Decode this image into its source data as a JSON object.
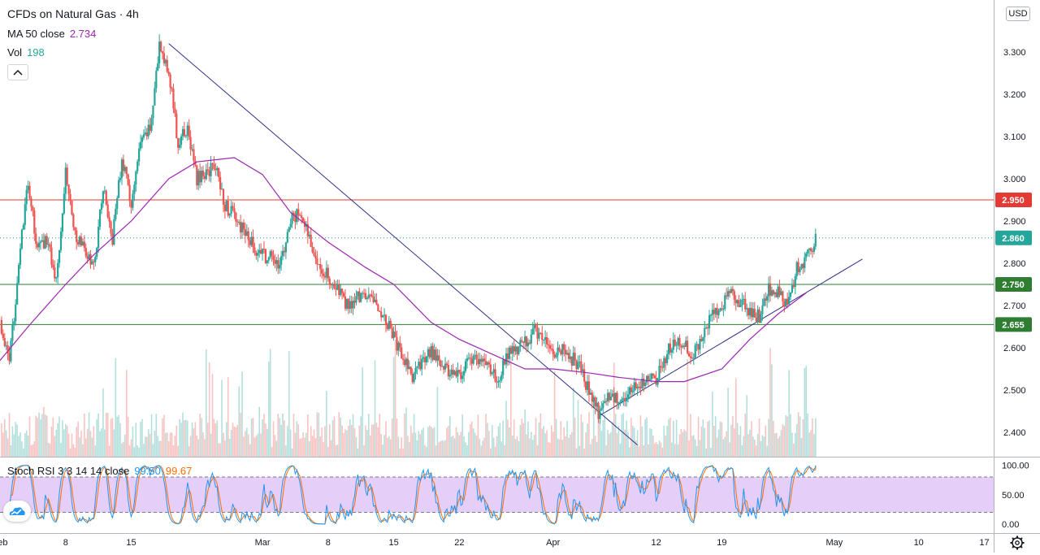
{
  "header": {
    "title": "CFDs on Natural Gas · 4h",
    "ma_key": "MA 50 close",
    "ma_value": "2.734",
    "vol_key": "Vol",
    "vol_value": "198",
    "currency": "USD",
    "collapse_icon": "chevron-up-icon"
  },
  "stoch": {
    "key": "Stoch RSI 3 3 14 14 close",
    "k_value": "99.50",
    "d_value": "99.67",
    "ticks": [
      0,
      50,
      100
    ],
    "tick_labels": [
      "0.00",
      "50.00",
      "100.00"
    ],
    "band": [
      20,
      80
    ]
  },
  "colors": {
    "up": "#26a69a",
    "down": "#ef5350",
    "ma": "#9c27b0",
    "trend": "#2a2e89",
    "resistance": "#e53935",
    "support": "#2e7d32",
    "stoch_k": "#2196f3",
    "stoch_d": "#ff6d00",
    "stoch_band": "#e1c6f7"
  },
  "chart_data": {
    "type": "candlestick",
    "title": "CFDs on Natural Gas · 4h",
    "ylim": [
      2.36,
      3.33
    ],
    "yticks": [
      3.3,
      3.2,
      3.1,
      3.0,
      2.9,
      2.8,
      2.7,
      2.6,
      2.5,
      2.4
    ],
    "ytick_labels": [
      "3.300",
      "3.200",
      "3.100",
      "3.000",
      "2.900",
      "2.800",
      "2.700",
      "2.600",
      "2.500",
      "2.400"
    ],
    "x_start": "2021-02-01",
    "x_end": "2021-05-18",
    "xticks": [
      "2021-02-01",
      "2021-02-08",
      "2021-02-15",
      "2021-03-01",
      "2021-03-08",
      "2021-03-15",
      "2021-03-22",
      "2021-04-01",
      "2021-04-12",
      "2021-04-19",
      "2021-05-01",
      "2021-05-10",
      "2021-05-17"
    ],
    "xtick_labels": [
      "Feb",
      "8",
      "15",
      "Mar",
      "8",
      "15",
      "22",
      "Apr",
      "12",
      "19",
      "May",
      "10",
      "17"
    ],
    "anchors": [
      [
        "2021-02-01",
        2.66
      ],
      [
        "2021-02-02",
        2.56
      ],
      [
        "2021-02-03",
        2.8
      ],
      [
        "2021-02-04",
        2.99
      ],
      [
        "2021-02-05",
        2.83
      ],
      [
        "2021-02-06",
        2.86
      ],
      [
        "2021-02-07",
        2.76
      ],
      [
        "2021-02-08",
        3.02
      ],
      [
        "2021-02-09",
        2.87
      ],
      [
        "2021-02-10",
        2.83
      ],
      [
        "2021-02-11",
        2.79
      ],
      [
        "2021-02-12",
        2.98
      ],
      [
        "2021-02-13",
        2.86
      ],
      [
        "2021-02-14",
        3.05
      ],
      [
        "2021-02-15",
        2.94
      ],
      [
        "2021-02-16",
        3.08
      ],
      [
        "2021-02-17",
        3.12
      ],
      [
        "2021-02-18",
        3.31
      ],
      [
        "2021-02-19",
        3.26
      ],
      [
        "2021-02-20",
        3.08
      ],
      [
        "2021-02-21",
        3.12
      ],
      [
        "2021-02-22",
        3.0
      ],
      [
        "2021-02-24",
        3.03
      ],
      [
        "2021-02-25",
        2.94
      ],
      [
        "2021-02-26",
        2.91
      ],
      [
        "2021-02-28",
        2.84
      ],
      [
        "2021-03-01",
        2.82
      ],
      [
        "2021-03-03",
        2.8
      ],
      [
        "2021-03-04",
        2.9
      ],
      [
        "2021-03-05",
        2.92
      ],
      [
        "2021-03-06",
        2.86
      ],
      [
        "2021-03-07",
        2.8
      ],
      [
        "2021-03-08",
        2.77
      ],
      [
        "2021-03-10",
        2.7
      ],
      [
        "2021-03-12",
        2.73
      ],
      [
        "2021-03-13",
        2.7
      ],
      [
        "2021-03-14",
        2.68
      ],
      [
        "2021-03-16",
        2.57
      ],
      [
        "2021-03-17",
        2.53
      ],
      [
        "2021-03-19",
        2.59
      ],
      [
        "2021-03-20",
        2.56
      ],
      [
        "2021-03-22",
        2.53
      ],
      [
        "2021-03-23",
        2.58
      ],
      [
        "2021-03-25",
        2.56
      ],
      [
        "2021-03-26",
        2.52
      ],
      [
        "2021-03-27",
        2.58
      ],
      [
        "2021-03-29",
        2.61
      ],
      [
        "2021-03-30",
        2.64
      ],
      [
        "2021-03-31",
        2.62
      ],
      [
        "2021-04-01",
        2.58
      ],
      [
        "2021-04-02",
        2.6
      ],
      [
        "2021-04-04",
        2.55
      ],
      [
        "2021-04-05",
        2.48
      ],
      [
        "2021-04-06",
        2.44
      ],
      [
        "2021-04-07",
        2.49
      ],
      [
        "2021-04-08",
        2.47
      ],
      [
        "2021-04-10",
        2.51
      ],
      [
        "2021-04-11",
        2.53
      ],
      [
        "2021-04-12",
        2.52
      ],
      [
        "2021-04-13",
        2.58
      ],
      [
        "2021-04-14",
        2.62
      ],
      [
        "2021-04-15",
        2.61
      ],
      [
        "2021-04-16",
        2.58
      ],
      [
        "2021-04-17",
        2.64
      ],
      [
        "2021-04-18",
        2.68
      ],
      [
        "2021-04-20",
        2.73
      ],
      [
        "2021-04-21",
        2.71
      ],
      [
        "2021-04-22",
        2.69
      ],
      [
        "2021-04-23",
        2.67
      ],
      [
        "2021-04-24",
        2.74
      ],
      [
        "2021-04-25",
        2.73
      ],
      [
        "2021-04-26",
        2.7
      ],
      [
        "2021-04-27",
        2.79
      ],
      [
        "2021-04-28",
        2.81
      ],
      [
        "2021-04-29",
        2.86
      ]
    ],
    "ma_path": [
      [
        "2021-02-01",
        2.57
      ],
      [
        "2021-02-04",
        2.65
      ],
      [
        "2021-02-08",
        2.75
      ],
      [
        "2021-02-11",
        2.82
      ],
      [
        "2021-02-15",
        2.9
      ],
      [
        "2021-02-19",
        3.0
      ],
      [
        "2021-02-22",
        3.04
      ],
      [
        "2021-02-26",
        3.05
      ],
      [
        "2021-03-01",
        3.01
      ],
      [
        "2021-03-04",
        2.92
      ],
      [
        "2021-03-08",
        2.85
      ],
      [
        "2021-03-12",
        2.79
      ],
      [
        "2021-03-15",
        2.75
      ],
      [
        "2021-03-19",
        2.66
      ],
      [
        "2021-03-22",
        2.62
      ],
      [
        "2021-03-26",
        2.58
      ],
      [
        "2021-03-29",
        2.55
      ],
      [
        "2021-04-01",
        2.55
      ],
      [
        "2021-04-05",
        2.54
      ],
      [
        "2021-04-08",
        2.53
      ],
      [
        "2021-04-12",
        2.52
      ],
      [
        "2021-04-15",
        2.52
      ],
      [
        "2021-04-19",
        2.55
      ],
      [
        "2021-04-22",
        2.62
      ],
      [
        "2021-04-25",
        2.68
      ],
      [
        "2021-04-28",
        2.73
      ]
    ],
    "trendlines": [
      {
        "from": [
          "2021-02-19",
          3.32
        ],
        "to": [
          "2021-04-10",
          2.37
        ]
      },
      {
        "from": [
          "2021-04-06",
          2.44
        ],
        "to": [
          "2021-05-04",
          2.81
        ]
      }
    ],
    "hlines": [
      {
        "value": 2.95,
        "label": "2.950",
        "color": "resistance",
        "badge_text_color": "#ffffff"
      },
      {
        "value": 2.75,
        "label": "2.750",
        "color": "support",
        "badge_text_color": "#ffffff"
      },
      {
        "value": 2.655,
        "label": "2.655",
        "color": "support",
        "badge_text_color": "#ffffff"
      }
    ],
    "last_price": {
      "value": 2.86,
      "label": "2.860"
    }
  }
}
